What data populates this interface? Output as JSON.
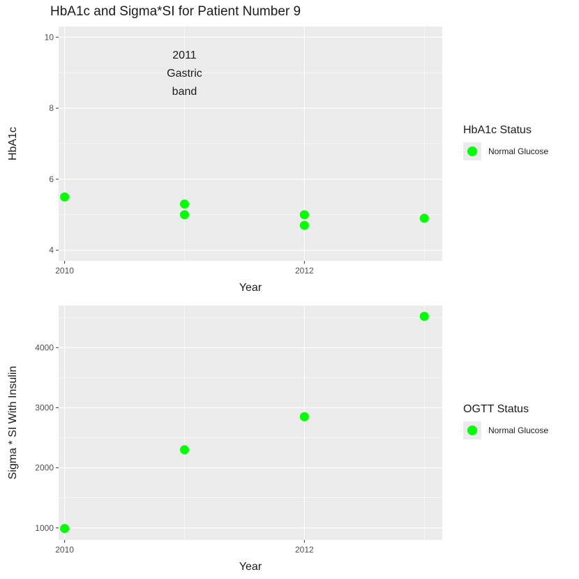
{
  "title": "HbA1c and Sigma*SI for Patient Number 9",
  "colors": {
    "panel": "#ebebeb",
    "grid": "#ffffff",
    "point": "#00ff00",
    "tick": "#4d4d4d",
    "text": "#1a1a1a"
  },
  "chart_data": [
    {
      "type": "scatter",
      "xlabel": "Year",
      "ylabel": "HbA1c",
      "xlim": [
        2009.95,
        2013.15
      ],
      "ylim": [
        3.7,
        10.3
      ],
      "x_ticks": [
        2010,
        2012
      ],
      "x_tick_labels": [
        "2010",
        "2012"
      ],
      "y_ticks": [
        4,
        6,
        8,
        10
      ],
      "y_tick_labels": [
        "4",
        "6",
        "8",
        "10"
      ],
      "x_grid_minor": [
        2011,
        2013
      ],
      "y_grid_minor": [
        5,
        7,
        9
      ],
      "grid": true,
      "points": [
        {
          "x": 2010,
          "y": 5.5
        },
        {
          "x": 2011,
          "y": 5.3
        },
        {
          "x": 2011,
          "y": 5.0
        },
        {
          "x": 2012,
          "y": 5.0
        },
        {
          "x": 2012,
          "y": 4.7
        },
        {
          "x": 2013,
          "y": 4.9
        }
      ],
      "annotation": {
        "x": 2011,
        "y": 9.0,
        "lines": [
          "2011",
          "Gastric",
          "band"
        ]
      },
      "legend": {
        "title": "HbA1c Status",
        "entries": [
          "Normal Glucose"
        ],
        "placement": "right"
      }
    },
    {
      "type": "scatter",
      "xlabel": "Year",
      "ylabel": "Sigma * SI With Insulin",
      "xlim": [
        2009.95,
        2013.15
      ],
      "ylim": [
        800,
        4700
      ],
      "x_ticks": [
        2010,
        2012
      ],
      "x_tick_labels": [
        "2010",
        "2012"
      ],
      "y_ticks": [
        1000,
        2000,
        3000,
        4000
      ],
      "y_tick_labels": [
        "1000",
        "2000",
        "3000",
        "4000"
      ],
      "x_grid_minor": [
        2011,
        2013
      ],
      "y_grid_minor": [
        1500,
        2500,
        3500,
        4500
      ],
      "grid": true,
      "points": [
        {
          "x": 2010,
          "y": 990
        },
        {
          "x": 2011,
          "y": 2300
        },
        {
          "x": 2012,
          "y": 2850
        },
        {
          "x": 2013,
          "y": 4520
        }
      ],
      "legend": {
        "title": "OGTT Status",
        "entries": [
          "Normal Glucose"
        ],
        "placement": "right"
      }
    }
  ]
}
